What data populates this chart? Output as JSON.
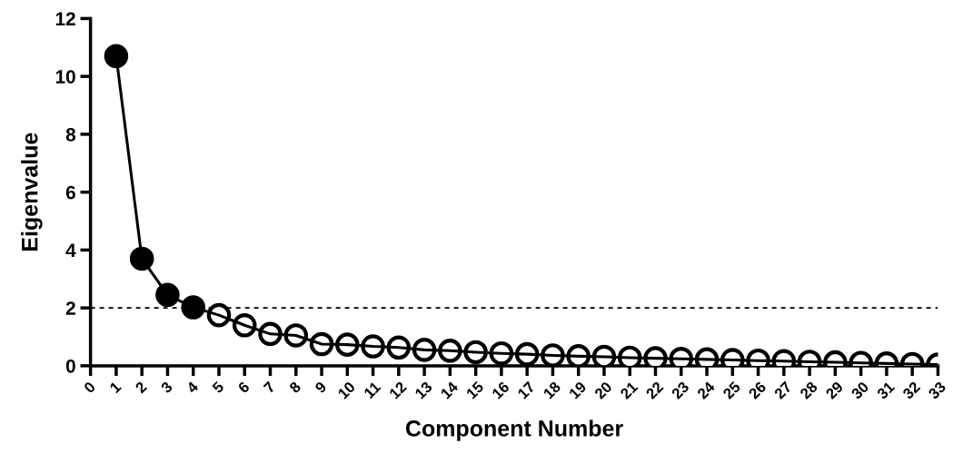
{
  "chart_data": {
    "type": "line",
    "xlabel": "Component Number",
    "ylabel": "Eigenvalue",
    "xlim": [
      0,
      33
    ],
    "xticks": [
      0,
      1,
      2,
      3,
      4,
      5,
      6,
      7,
      8,
      9,
      10,
      11,
      12,
      13,
      14,
      15,
      16,
      17,
      18,
      19,
      20,
      21,
      22,
      23,
      24,
      25,
      26,
      27,
      28,
      29,
      30,
      31,
      32,
      33
    ],
    "ylim": [
      0,
      12
    ],
    "yticks": [
      0,
      2,
      4,
      6,
      8,
      10,
      12
    ],
    "grid": false,
    "ref_lines": [
      {
        "axis": "y",
        "value": 2,
        "color": "#000000",
        "line_style": "dashed"
      }
    ],
    "series": [
      {
        "color": "#000000",
        "marker": "none",
        "line_style": "solid",
        "x": [
          1,
          2,
          3,
          4,
          5,
          6,
          7,
          8,
          9,
          10,
          11,
          12,
          13,
          14,
          15,
          16,
          17,
          18,
          19,
          20,
          21,
          22,
          23,
          24,
          25,
          26,
          27,
          28,
          29,
          30,
          31,
          32,
          33
        ],
        "values": [
          10.7,
          3.7,
          2.45,
          2.02,
          1.75,
          1.4,
          1.1,
          1.05,
          0.75,
          0.73,
          0.67,
          0.63,
          0.55,
          0.52,
          0.47,
          0.43,
          0.4,
          0.36,
          0.33,
          0.31,
          0.28,
          0.26,
          0.24,
          0.22,
          0.2,
          0.18,
          0.16,
          0.14,
          0.12,
          0.1,
          0.08,
          0.06,
          0.04
        ]
      },
      {
        "type": "scatter",
        "color": "#000000",
        "marker": "circle",
        "x": [
          1,
          2,
          3,
          4
        ],
        "values": [
          10.7,
          3.7,
          2.45,
          2.02
        ]
      },
      {
        "type": "scatter",
        "color": "#ffffff",
        "marker": "circle",
        "x": [
          5,
          6,
          7,
          8,
          9,
          10,
          11,
          12,
          13,
          14,
          15,
          16,
          17,
          18,
          19,
          20,
          21,
          22,
          23,
          24,
          25,
          26,
          27,
          28,
          29,
          30,
          31,
          32,
          33
        ],
        "values": [
          1.75,
          1.4,
          1.1,
          1.05,
          0.75,
          0.73,
          0.67,
          0.63,
          0.55,
          0.52,
          0.47,
          0.43,
          0.4,
          0.36,
          0.33,
          0.31,
          0.28,
          0.26,
          0.24,
          0.22,
          0.2,
          0.18,
          0.16,
          0.14,
          0.12,
          0.1,
          0.08,
          0.06,
          0.04
        ]
      }
    ]
  }
}
